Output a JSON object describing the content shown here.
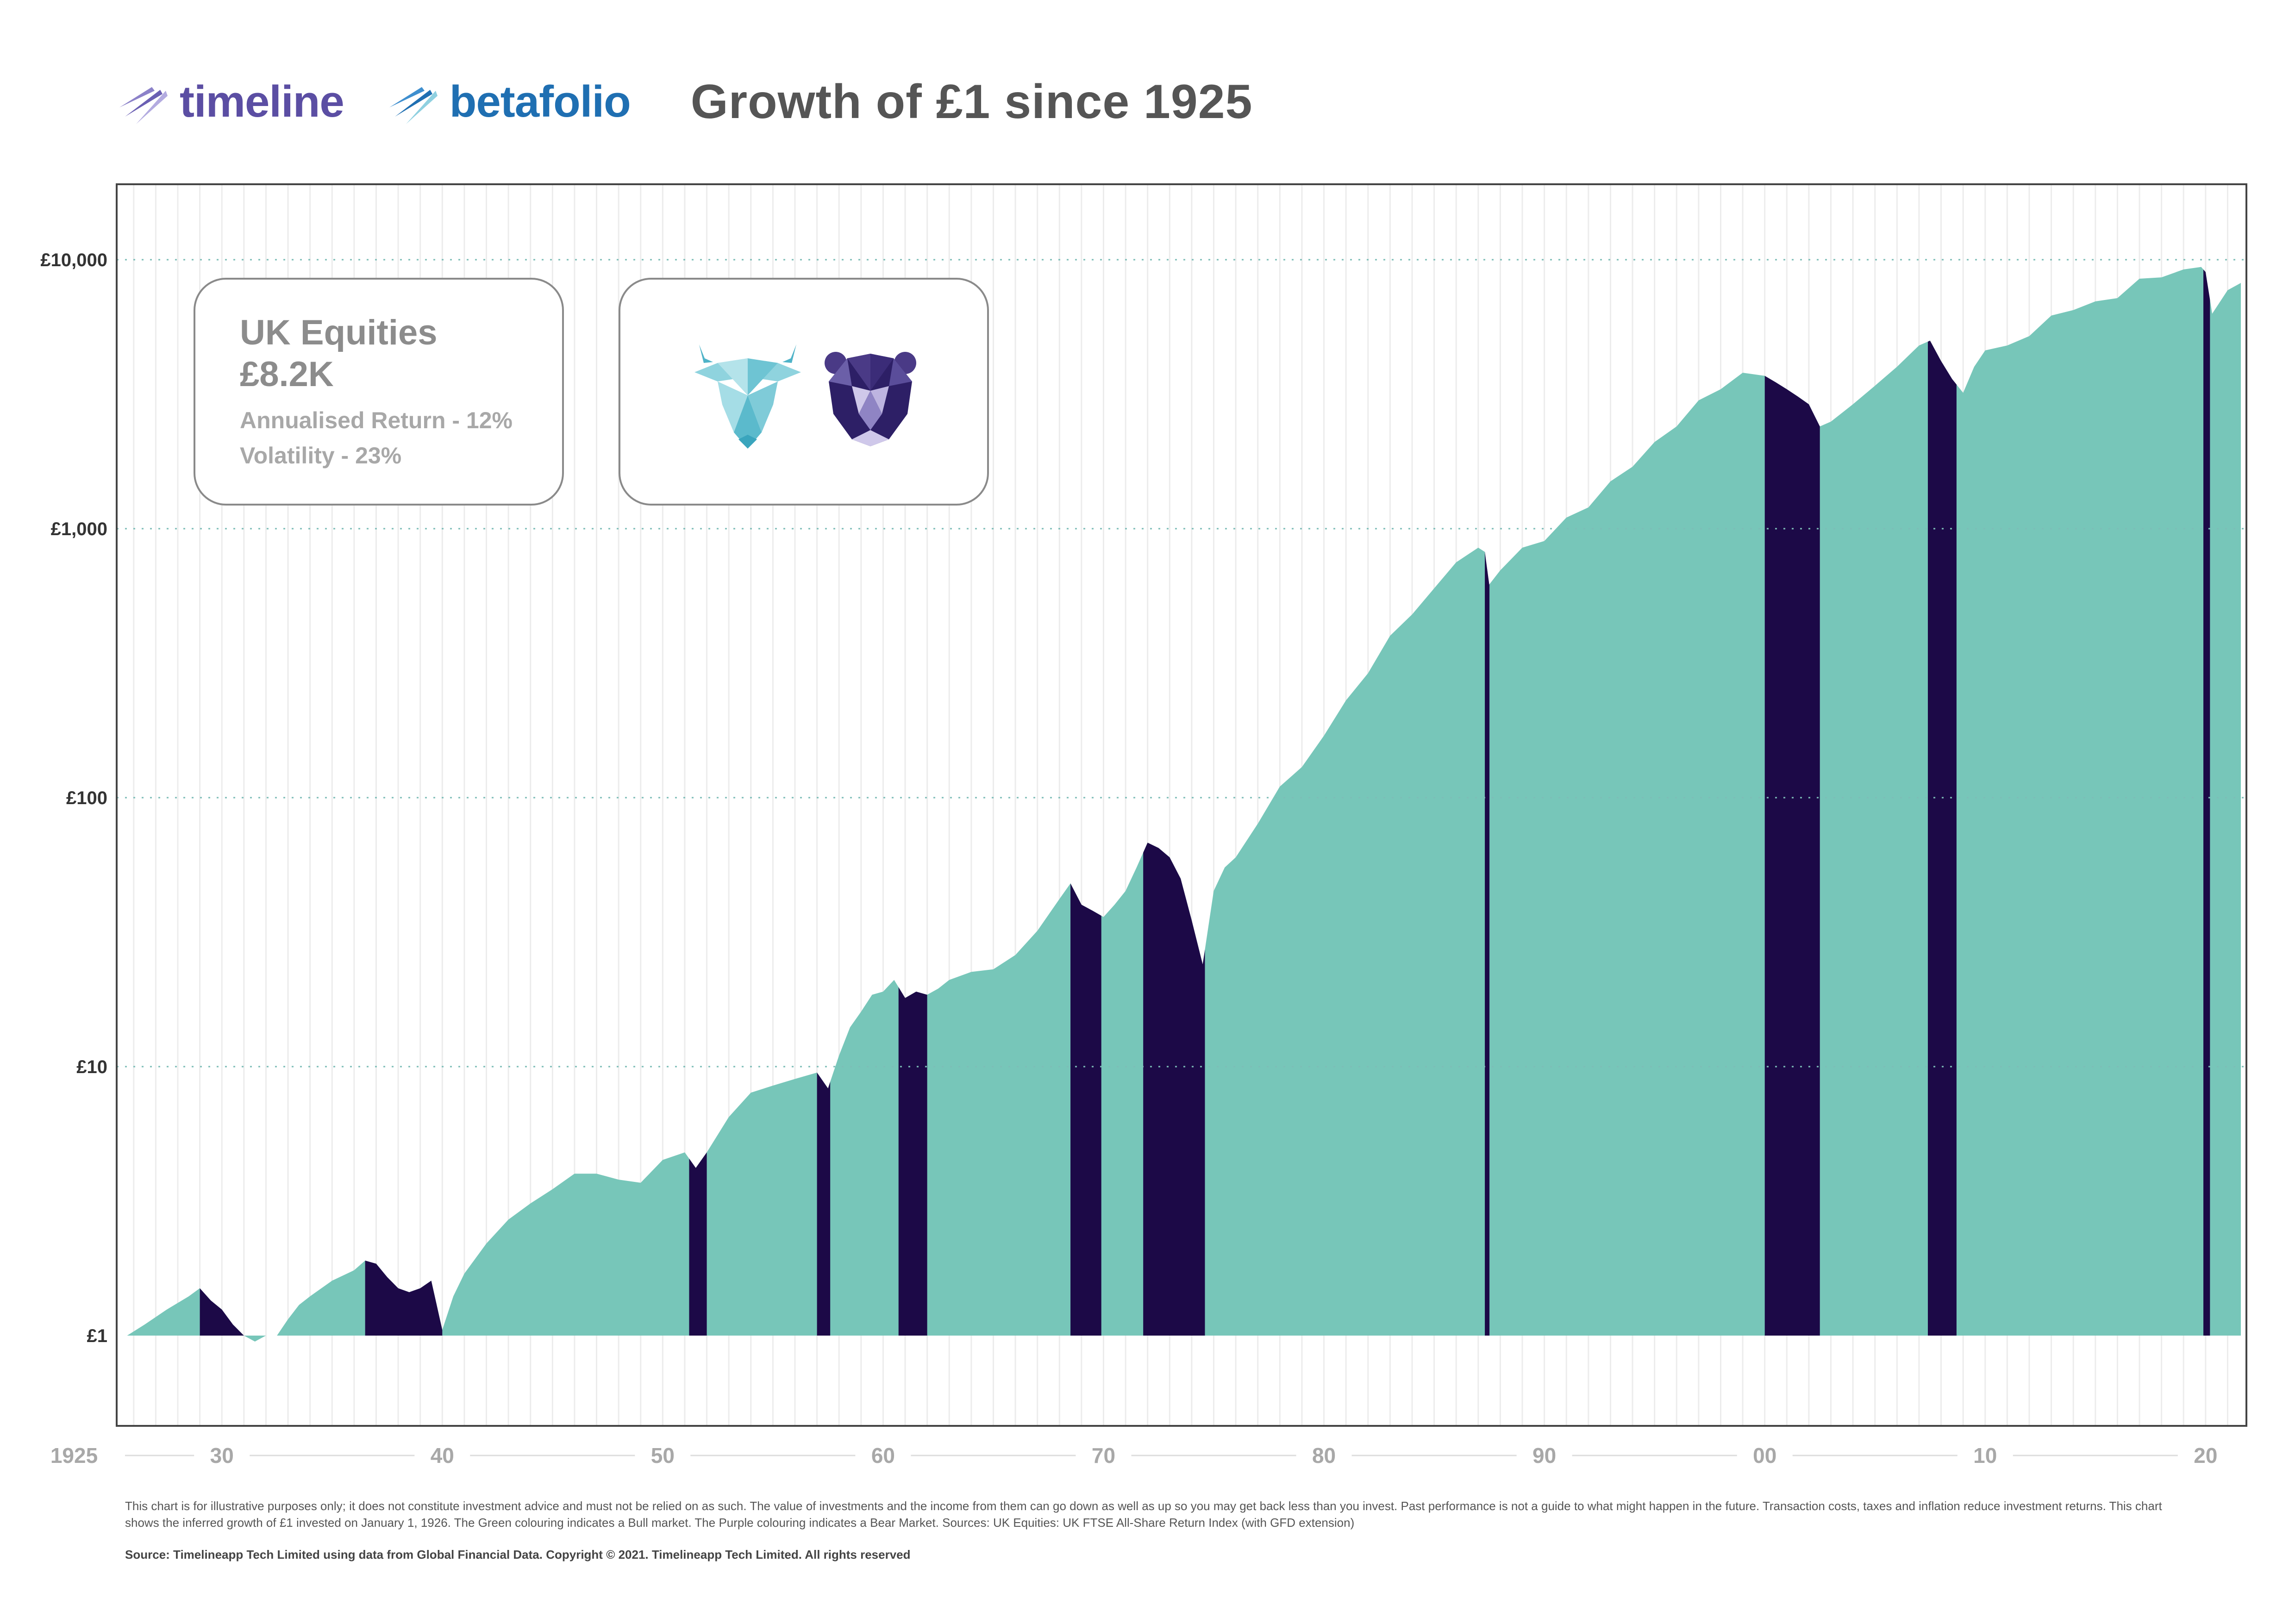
{
  "header": {
    "brand_timeline": "timeline",
    "brand_betafolio": "betafolio",
    "title": "Growth of £1 since 1925"
  },
  "series_card": {
    "name": "UK Equities",
    "value": "£8.2K",
    "annualised_return": "Annualised Return - 12%",
    "volatility": "Volatility - 23%"
  },
  "legend_card": {
    "bull_icon": "bull-icon",
    "bear_icon": "bear-icon"
  },
  "colors": {
    "bull": "#77c6b9",
    "bear": "#1c0947",
    "gridline": "#7cbdb7",
    "year_line": "#ececec",
    "frame": "#444444",
    "tick_text": "#333333",
    "x_tick_text": "#a8a8a8",
    "brand_timeline": "#5b4ea3",
    "brand_betafolio": "#1f6fb2",
    "title": "#555555"
  },
  "chart_data": {
    "type": "area",
    "y_scale": "log",
    "ylim": [
      0.55,
      18000
    ],
    "xlim": [
      1925.5,
      2021.6
    ],
    "grid": "dotted horizontal at each power of ten, faint vertical line at each year",
    "y_ticks": [
      {
        "value": 1,
        "label": "£1"
      },
      {
        "value": 10,
        "label": "£10"
      },
      {
        "value": 100,
        "label": "£100"
      },
      {
        "value": 1000,
        "label": "£1,000"
      },
      {
        "value": 10000,
        "label": "£10,000"
      }
    ],
    "x_ticks": [
      {
        "value": 1925.5,
        "label": "1925"
      },
      {
        "value": 1930,
        "label": "30"
      },
      {
        "value": 1940,
        "label": "40"
      },
      {
        "value": 1950,
        "label": "50"
      },
      {
        "value": 1960,
        "label": "60"
      },
      {
        "value": 1970,
        "label": "70"
      },
      {
        "value": 1980,
        "label": "80"
      },
      {
        "value": 1990,
        "label": "90"
      },
      {
        "value": 2000,
        "label": "00"
      },
      {
        "value": 2010,
        "label": "10"
      },
      {
        "value": 2020,
        "label": "20"
      }
    ],
    "series": {
      "x": [
        1925.7,
        1926.5,
        1927.5,
        1928.5,
        1929.0,
        1929.5,
        1930.0,
        1930.5,
        1931.0,
        1931.5,
        1932.0,
        1932.5,
        1933.0,
        1933.5,
        1934.0,
        1935.0,
        1936.0,
        1936.5,
        1937.0,
        1937.5,
        1938.0,
        1938.5,
        1939.0,
        1939.5,
        1940.0,
        1940.5,
        1941.0,
        1942.0,
        1943.0,
        1944.0,
        1945.0,
        1946.0,
        1947.0,
        1948.0,
        1949.0,
        1950.0,
        1951.0,
        1951.5,
        1952.0,
        1953.0,
        1954.0,
        1955.0,
        1956.0,
        1957.0,
        1957.5,
        1958.0,
        1958.5,
        1959.0,
        1959.5,
        1960.0,
        1960.5,
        1961.0,
        1961.5,
        1962.0,
        1962.5,
        1963.0,
        1964.0,
        1965.0,
        1966.0,
        1967.0,
        1968.0,
        1968.5,
        1969.0,
        1969.5,
        1970.0,
        1970.5,
        1971.0,
        1971.5,
        1972.0,
        1972.5,
        1973.0,
        1973.5,
        1974.0,
        1974.5,
        1975.0,
        1975.5,
        1976.0,
        1977.0,
        1978.0,
        1979.0,
        1980.0,
        1981.0,
        1982.0,
        1983.0,
        1984.0,
        1985.0,
        1986.0,
        1987.0,
        1987.3,
        1987.5,
        1988.0,
        1989.0,
        1990.0,
        1991.0,
        1992.0,
        1993.0,
        1994.0,
        1995.0,
        1996.0,
        1997.0,
        1998.0,
        1999.0,
        2000.0,
        2000.5,
        2001.0,
        2001.5,
        2002.0,
        2002.5,
        2003.0,
        2004.0,
        2005.0,
        2006.0,
        2007.0,
        2007.5,
        2008.0,
        2008.5,
        2009.0,
        2009.5,
        2010.0,
        2011.0,
        2012.0,
        2013.0,
        2014.0,
        2015.0,
        2016.0,
        2017.0,
        2018.0,
        2019.0,
        2019.8,
        2020.0,
        2020.3,
        2021.0,
        2021.6
      ],
      "y": [
        1.0,
        1.1,
        1.25,
        1.4,
        1.5,
        1.35,
        1.25,
        1.1,
        1.0,
        0.95,
        1.0,
        1.0,
        1.15,
        1.3,
        1.4,
        1.6,
        1.75,
        1.9,
        1.85,
        1.65,
        1.5,
        1.45,
        1.5,
        1.6,
        1.05,
        1.4,
        1.7,
        2.2,
        2.7,
        3.1,
        3.5,
        4.0,
        4.0,
        3.8,
        3.7,
        4.5,
        4.8,
        4.2,
        4.8,
        6.5,
        8.0,
        8.5,
        9.0,
        9.5,
        8.3,
        11.0,
        14.0,
        16.0,
        18.5,
        19.0,
        21.0,
        18.0,
        19.0,
        18.5,
        19.5,
        21.0,
        22.5,
        23.0,
        26.0,
        32.0,
        42.0,
        48.0,
        40.0,
        38.0,
        36.0,
        40.0,
        45.0,
        55.0,
        68.0,
        65.0,
        60.0,
        50.0,
        35.0,
        24.0,
        45.0,
        55.0,
        60.0,
        80.0,
        110.0,
        130.0,
        170.0,
        230.0,
        290.0,
        400.0,
        480.0,
        600.0,
        750.0,
        850.0,
        820.0,
        620.0,
        700.0,
        850.0,
        900.0,
        1100.0,
        1200.0,
        1500.0,
        1700.0,
        2100.0,
        2400.0,
        3000.0,
        3300.0,
        3800.0,
        3700.0,
        3500.0,
        3300.0,
        3100.0,
        2900.0,
        2400.0,
        2500.0,
        2900.0,
        3400.0,
        4000.0,
        4800.0,
        5000.0,
        4200.0,
        3600.0,
        3200.0,
        4000.0,
        4600.0,
        4800.0,
        5200.0,
        6200.0,
        6500.0,
        7000.0,
        7200.0,
        8500.0,
        8600.0,
        9200.0,
        9400.0,
        9000.0,
        6300.0,
        7700.0,
        8200.0
      ],
      "bear_periods": [
        [
          1929.0,
          1932.0
        ],
        [
          1936.5,
          1940.0
        ],
        [
          1951.2,
          1952.0
        ],
        [
          1957.0,
          1957.6
        ],
        [
          1960.7,
          1962.0
        ],
        [
          1968.5,
          1969.9
        ],
        [
          1971.8,
          1974.6
        ],
        [
          1987.3,
          1987.5
        ],
        [
          2000.0,
          2002.5
        ],
        [
          2007.4,
          2008.7
        ],
        [
          2019.9,
          2020.2
        ]
      ]
    }
  },
  "footer": {
    "disclaimer": "This chart is for illustrative purposes only; it does not constitute investment advice and must not be relied on as such. The value of investments and the income from them can go down as well as up so you may get back less than you invest. Past performance is not a guide to what might happen in the future. Transaction costs, taxes and inflation reduce investment returns. This chart shows the inferred growth of £1 invested on January 1, 1926. The Green colouring indicates a Bull market. The Purple colouring indicates a Bear Market. Sources: UK Equities: UK FTSE All-Share Return Index (with GFD extension)",
    "source": "Source: Timelineapp Tech Limited using data from Global Financial Data. Copyright © 2021. Timelineapp Tech Limited. All rights reserved"
  }
}
